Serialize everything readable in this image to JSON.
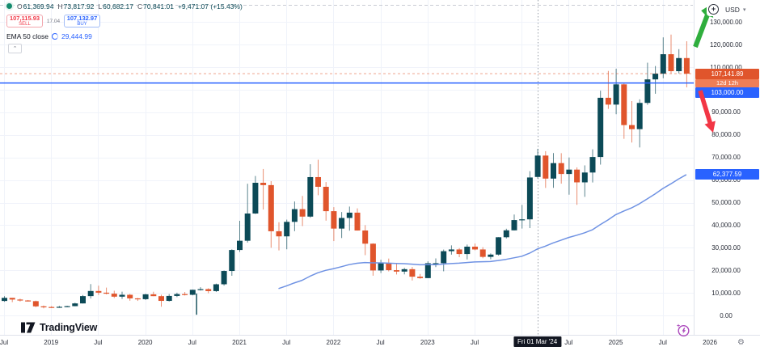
{
  "window": {
    "currency": "USD"
  },
  "legend": {
    "ohlc": {
      "o_label": "O",
      "o_value": "61,369.94",
      "h_label": "H",
      "h_value": "73,817.92",
      "l_label": "L",
      "l_value": "60,682.17",
      "c_label": "C",
      "c_value": "70,841.01",
      "change": "+9,471.07 (+15.43%)"
    },
    "indicator": {
      "title": "EMA 50 close",
      "value": "29,444.99"
    }
  },
  "trade_panel": {
    "sell_price": "107,115.93",
    "sell_label": "SELL",
    "spread": "17.04",
    "buy_price": "107,132.97",
    "buy_label": "BUY"
  },
  "axis_chips": {
    "current_price": "107,141.89",
    "countdown": "12d 12h",
    "hline_price": "103,000.00",
    "ema_value": "62,377.59"
  },
  "price_axis": {
    "ticks": [
      {
        "v": 130000,
        "label": "130,000.00"
      },
      {
        "v": 120000,
        "label": "120,000.00"
      },
      {
        "v": 110000,
        "label": "110,000.00"
      },
      {
        "v": 100000,
        "label": "100,000.00"
      },
      {
        "v": 90000,
        "label": "90,000.00"
      },
      {
        "v": 80000,
        "label": "80,000.00"
      },
      {
        "v": 70000,
        "label": "70,000.00"
      },
      {
        "v": 60000,
        "label": "60,000.00"
      },
      {
        "v": 50000,
        "label": "50,000.00"
      },
      {
        "v": 40000,
        "label": "40,000.00"
      },
      {
        "v": 30000,
        "label": "30,000.00"
      },
      {
        "v": 20000,
        "label": "20,000.00"
      },
      {
        "v": 10000,
        "label": "10,000.00"
      },
      {
        "v": 0,
        "label": "0.00"
      }
    ]
  },
  "time_axis": {
    "ticks": [
      {
        "i": 0,
        "label": "Jul"
      },
      {
        "i": 6,
        "label": "2019"
      },
      {
        "i": 12,
        "label": "Jul"
      },
      {
        "i": 18,
        "label": "2020"
      },
      {
        "i": 24,
        "label": "Jul"
      },
      {
        "i": 30,
        "label": "2021"
      },
      {
        "i": 36,
        "label": "Jul"
      },
      {
        "i": 42,
        "label": "2022"
      },
      {
        "i": 48,
        "label": "Jul"
      },
      {
        "i": 54,
        "label": "2023"
      },
      {
        "i": 60,
        "label": "Jul"
      },
      {
        "i": 66,
        "label": "2024"
      },
      {
        "i": 72,
        "label": "Jul"
      },
      {
        "i": 78,
        "label": "2025"
      },
      {
        "i": 84,
        "label": "Jul"
      },
      {
        "i": 90,
        "label": "2026"
      }
    ]
  },
  "footer": {
    "brand": "TradingView"
  },
  "colors": {
    "up": "#0c4a57",
    "down": "#e0552c",
    "ema": "#6f92e3",
    "accent_blue": "#2962ff",
    "sell_red": "#f23645",
    "grid": "#f0f3fa",
    "axis_text": "#2a2e39",
    "green_arrow": "#2fae3d",
    "red_arrow": "#f23645",
    "purple_icon": "#ab47bc",
    "dashed_top": "#c9ccd4",
    "crosshair": "#9aa0aa",
    "countdown_bg": "#ef7e57",
    "current_price_bg": "#e0552c",
    "label_dark": "#131722",
    "status_dot_green": "#148a6d"
  },
  "chart_data": {
    "type": "candlestick",
    "interval_hint": "1M",
    "start_month": "2018-07",
    "ylim": [
      0,
      139000
    ],
    "grid_step_y": 10000,
    "ohlc_series": [
      [
        6404,
        8491,
        6070,
        7780
      ],
      [
        7780,
        7780,
        5880,
        7033
      ],
      [
        7033,
        7412,
        6160,
        6626
      ],
      [
        6626,
        6820,
        6205,
        6317
      ],
      [
        6317,
        6556,
        3657,
        4017
      ],
      [
        4017,
        4410,
        3158,
        3743
      ],
      [
        3743,
        4110,
        3350,
        3437
      ],
      [
        3437,
        4219,
        3331,
        3816
      ],
      [
        3816,
        4290,
        3671,
        4105
      ],
      [
        4105,
        5627,
        4053,
        5320
      ],
      [
        5320,
        9072,
        5266,
        8558
      ],
      [
        8558,
        13880,
        7477,
        10818
      ],
      [
        10818,
        13185,
        9080,
        10080
      ],
      [
        10080,
        12325,
        9321,
        9630
      ],
      [
        9630,
        10949,
        7714,
        8310
      ],
      [
        8310,
        10540,
        7293,
        9150
      ],
      [
        9150,
        9505,
        6515,
        7550
      ],
      [
        7550,
        7750,
        6425,
        7200
      ],
      [
        7200,
        9575,
        6850,
        9350
      ],
      [
        9350,
        10500,
        8520,
        8540
      ],
      [
        8540,
        9170,
        3850,
        6440
      ],
      [
        6440,
        9460,
        6150,
        8630
      ],
      [
        8630,
        10070,
        8110,
        9450
      ],
      [
        9450,
        10380,
        8830,
        9140
      ],
      [
        9140,
        11450,
        8905,
        11350
      ],
      [
        11350,
        12480,
        11010,
        11650
      ],
      [
        11650,
        12050,
        9825,
        10780
      ],
      [
        10780,
        14100,
        10380,
        13800
      ],
      [
        13800,
        19915,
        13200,
        19700
      ],
      [
        19700,
        29300,
        17570,
        29000
      ],
      [
        29000,
        41950,
        28130,
        33100
      ],
      [
        33100,
        58350,
        32300,
        45160
      ],
      [
        45160,
        61800,
        44950,
        58780
      ],
      [
        58780,
        64900,
        46930,
        57750
      ],
      [
        57750,
        59500,
        30000,
        37300
      ],
      [
        37300,
        41330,
        28800,
        35040
      ],
      [
        35040,
        42450,
        29300,
        41460
      ],
      [
        41460,
        50500,
        37330,
        47100
      ],
      [
        47100,
        52950,
        39600,
        43790
      ],
      [
        43790,
        67000,
        43280,
        61300
      ],
      [
        61300,
        69000,
        53250,
        57000
      ],
      [
        57000,
        59100,
        42000,
        46200
      ],
      [
        46200,
        47990,
        32950,
        38480
      ],
      [
        38480,
        45820,
        34300,
        43190
      ],
      [
        43190,
        48240,
        37550,
        45540
      ],
      [
        45540,
        47450,
        37580,
        37630
      ],
      [
        37630,
        40000,
        26700,
        31790
      ],
      [
        31790,
        31960,
        17600,
        19925
      ],
      [
        19925,
        24670,
        18780,
        23290
      ],
      [
        23290,
        25200,
        19520,
        20050
      ],
      [
        20050,
        22800,
        18125,
        19425
      ],
      [
        19425,
        21085,
        18190,
        20490
      ],
      [
        20490,
        21480,
        15475,
        17165
      ],
      [
        17165,
        18385,
        16256,
        16540
      ],
      [
        16540,
        23960,
        16490,
        23125
      ],
      [
        23125,
        25250,
        21400,
        23145
      ],
      [
        23145,
        29185,
        19550,
        28465
      ],
      [
        28465,
        31050,
        26940,
        29230
      ],
      [
        29230,
        29820,
        25800,
        27210
      ],
      [
        27210,
        31400,
        24800,
        30470
      ],
      [
        30470,
        31850,
        28850,
        29230
      ],
      [
        29230,
        30240,
        25350,
        25940
      ],
      [
        25940,
        27480,
        24900,
        26960
      ],
      [
        26960,
        34700,
        26540,
        34650
      ],
      [
        34650,
        38420,
        34100,
        37710
      ],
      [
        37710,
        44700,
        37615,
        42265
      ],
      [
        42265,
        48970,
        38500,
        42580
      ],
      [
        42580,
        63935,
        38700,
        61130
      ],
      [
        61369.94,
        73817.92,
        60682.17,
        70841.01
      ],
      [
        70841,
        72800,
        56500,
        60640
      ],
      [
        60640,
        71950,
        56555,
        67490
      ],
      [
        67490,
        71900,
        58400,
        62680
      ],
      [
        62680,
        70000,
        53500,
        64620
      ],
      [
        64620,
        65600,
        49000,
        58970
      ],
      [
        58970,
        66500,
        52550,
        63330
      ],
      [
        63330,
        73600,
        58900,
        70215
      ],
      [
        70215,
        99600,
        66835,
        96450
      ],
      [
        96450,
        108350,
        91530,
        93430
      ],
      [
        93430,
        109350,
        89165,
        102400
      ],
      [
        102400,
        102780,
        78260,
        84350
      ],
      [
        84350,
        95000,
        76600,
        82550
      ],
      [
        82550,
        95770,
        74440,
        94180
      ],
      [
        94180,
        112000,
        93340,
        104600
      ],
      [
        104600,
        110530,
        98240,
        107140
      ],
      [
        107140,
        123230,
        105115,
        115760
      ],
      [
        115760,
        124450,
        107270,
        108240
      ],
      [
        108240,
        118000,
        107250,
        114050
      ],
      [
        114050,
        121500,
        101082,
        107141.89
      ]
    ],
    "ema50": {
      "label": "EMA 50 close",
      "start_index": 35,
      "values": [
        11900,
        13060,
        14390,
        15540,
        17340,
        18890,
        19960,
        20690,
        21570,
        22510,
        23100,
        23440,
        23300,
        23300,
        23170,
        23020,
        22920,
        22700,
        22460,
        22480,
        22510,
        22740,
        23000,
        23160,
        23450,
        23680,
        23770,
        23890,
        24310,
        24840,
        25520,
        26190,
        27560,
        29444.99,
        30670,
        32110,
        33310,
        34540,
        35500,
        36590,
        37910,
        40200,
        42290,
        44650,
        46200,
        47630,
        49450,
        51620,
        53790,
        56220,
        58260,
        60450,
        62377.59
      ],
      "value_at_crosshair": 29444.99,
      "last_value": 62377.59
    },
    "crosshair": {
      "index": 68,
      "date": "Fri 01 Mar '24",
      "ohlc": {
        "open": 61369.94,
        "high": 73817.92,
        "low": 60682.17,
        "close": 70841.01,
        "change": 9471.07,
        "change_pct": 15.43
      }
    },
    "lines": {
      "blue_horizontal_price": 103000,
      "current_price": 107141.89,
      "top_dashed_line": true
    },
    "drawings": [
      {
        "kind": "vertical-segment",
        "index": 24.5,
        "from_price": 9700,
        "to_price": 300
      },
      {
        "kind": "arrow-up"
      },
      {
        "kind": "arrow-down"
      }
    ]
  }
}
